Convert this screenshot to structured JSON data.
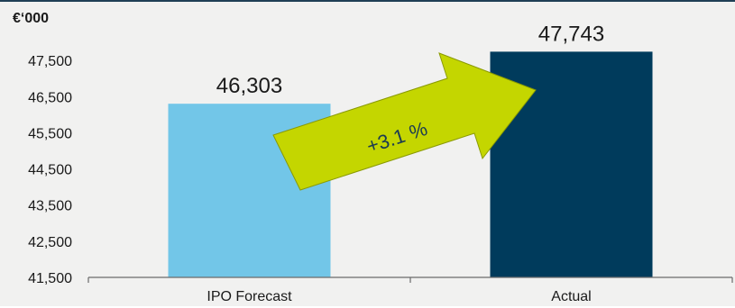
{
  "chart_data": {
    "type": "bar",
    "unit_label": "€‘000",
    "categories": [
      "IPO Forecast",
      "Actual"
    ],
    "values": [
      46303,
      47743
    ],
    "value_labels": [
      "46,303",
      "47,743"
    ],
    "bar_colors": [
      "#72c6e8",
      "#003b5c"
    ],
    "ylim": [
      41500,
      48500
    ],
    "yticks": [
      41500,
      42500,
      43500,
      44500,
      45500,
      46500,
      47500
    ],
    "ytick_labels": [
      "41,500",
      "42,500",
      "43,500",
      "44,500",
      "45,500",
      "46,500",
      "47,500"
    ],
    "annotation": {
      "text": "+3.1 %",
      "color": "#c4d600"
    },
    "grid": false,
    "legend": "none"
  }
}
